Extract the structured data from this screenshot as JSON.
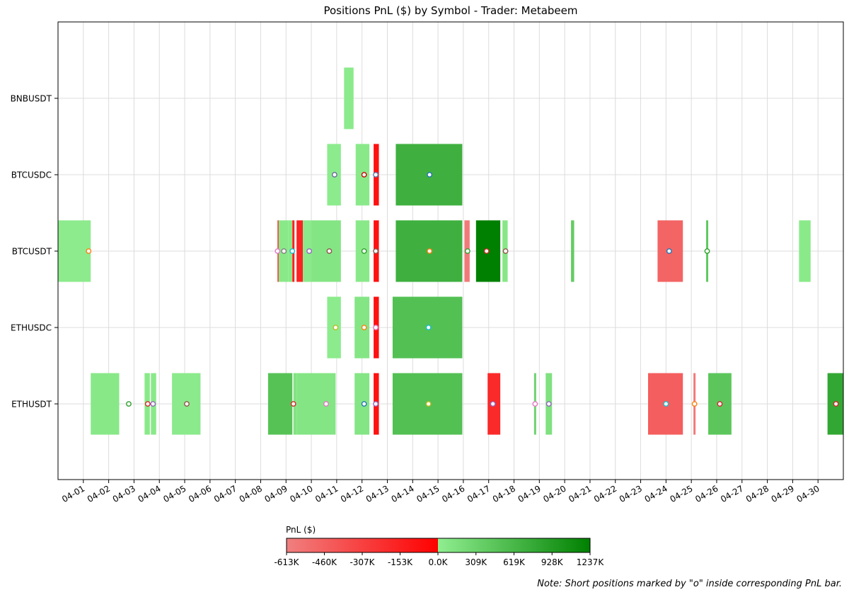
{
  "chart_data": {
    "type": "bar",
    "orientation": "horizontal-timeline",
    "title": "Positions PnL ($) by Symbol - Trader: Metabeem",
    "xlabel": "",
    "ylabel": "",
    "categories": [
      "BNBUSDT",
      "BTCUSDC",
      "BTCUSDT",
      "ETHUSDC",
      "ETHUSDT"
    ],
    "x_ticks": [
      "04-01",
      "04-02",
      "04-03",
      "04-04",
      "04-05",
      "04-06",
      "04-07",
      "04-08",
      "04-09",
      "04-10",
      "04-11",
      "04-12",
      "04-13",
      "04-14",
      "04-15",
      "04-16",
      "04-17",
      "04-18",
      "04-19",
      "04-20",
      "04-21",
      "04-22",
      "04-23",
      "04-24",
      "04-25",
      "04-26",
      "04-27",
      "04-28",
      "04-29",
      "04-30"
    ],
    "xlim": [
      "03-31 00:00",
      "05-01 00:00"
    ],
    "grid": true,
    "colorbar": {
      "label": "PnL ($)",
      "ticks": [
        "-613K",
        "-460K",
        "-307K",
        "-153K",
        "0.0K",
        "309K",
        "619K",
        "928K",
        "1237K"
      ],
      "range": [
        -613,
        1237
      ],
      "negative_colors": [
        "#f08080",
        "#ff0000"
      ],
      "positive_colors": [
        "#90ee90",
        "#008000"
      ]
    },
    "note": "Note: Short positions marked by \"o\" inside corresponding PnL bar.",
    "positions": [
      {
        "symbol": "BNBUSDT",
        "start": "04-11 07:00",
        "end": "04-11 16:00",
        "pnl": 40,
        "shorts": []
      },
      {
        "symbol": "BTCUSDC",
        "start": "04-10 15:00",
        "end": "04-11 04:00",
        "pnl": 35,
        "shorts": [
          {
            "t": "04-10 22:00",
            "c": "#6a6a9a"
          }
        ]
      },
      {
        "symbol": "BTCUSDC",
        "start": "04-11 18:00",
        "end": "04-12 07:00",
        "pnl": 60,
        "shorts": [
          {
            "t": "04-12 02:00",
            "c": "#cc0000"
          }
        ]
      },
      {
        "symbol": "BTCUSDC",
        "start": "04-12 11:00",
        "end": "04-12 16:00",
        "pnl": -80,
        "shorts": [
          {
            "t": "04-12 13:00",
            "c": "#5a7ab0"
          }
        ]
      },
      {
        "symbol": "BTCUSDC",
        "start": "04-13 08:00",
        "end": "04-15 23:00",
        "pnl": 700,
        "shorts": [
          {
            "t": "04-14 16:00",
            "c": "#1f77b4"
          }
        ]
      },
      {
        "symbol": "BTCUSDT",
        "start": "03-31 00:00",
        "end": "04-01 07:00",
        "pnl": 30,
        "shorts": [
          {
            "t": "04-01 05:00",
            "c": "#ff7f0e"
          }
        ]
      },
      {
        "symbol": "BTCUSDT",
        "start": "04-08 16:00",
        "end": "04-08 17:00",
        "pnl": -120,
        "shorts": [
          {
            "t": "04-08 16:00",
            "c": "#e377c2"
          }
        ]
      },
      {
        "symbol": "BTCUSDT",
        "start": "04-08 17:00",
        "end": "04-09 02:00",
        "pnl": 60,
        "shorts": [
          {
            "t": "04-08 22:00",
            "c": "#7f7f7f"
          }
        ]
      },
      {
        "symbol": "BTCUSDT",
        "start": "04-09 02:00",
        "end": "04-09 06:00",
        "pnl": 50,
        "shorts": [
          {
            "t": "04-09 06:00",
            "c": "#17becf"
          }
        ]
      },
      {
        "symbol": "BTCUSDT",
        "start": "04-09 06:00",
        "end": "04-09 08:00",
        "pnl": -150,
        "shorts": []
      },
      {
        "symbol": "BTCUSDT",
        "start": "04-09 10:00",
        "end": "04-09 16:00",
        "pnl": -170,
        "shorts": []
      },
      {
        "symbol": "BTCUSDT",
        "start": "04-09 16:00",
        "end": "04-10 00:00",
        "pnl": 40,
        "shorts": [
          {
            "t": "04-09 22:00",
            "c": "#9467bd"
          }
        ]
      },
      {
        "symbol": "BTCUSDT",
        "start": "04-10 00:00",
        "end": "04-11 04:00",
        "pnl": 100,
        "shorts": [
          {
            "t": "04-10 17:00",
            "c": "#8c564b"
          }
        ]
      },
      {
        "symbol": "BTCUSDT",
        "start": "04-11 18:00",
        "end": "04-12 07:00",
        "pnl": 60,
        "shorts": [
          {
            "t": "04-12 02:00",
            "c": "#2ca02c"
          }
        ]
      },
      {
        "symbol": "BTCUSDT",
        "start": "04-12 11:00",
        "end": "04-12 16:00",
        "pnl": -80,
        "shorts": [
          {
            "t": "04-12 13:00",
            "c": "#8c564b"
          }
        ]
      },
      {
        "symbol": "BTCUSDT",
        "start": "04-13 08:00",
        "end": "04-15 23:00",
        "pnl": 700,
        "shorts": [
          {
            "t": "04-14 16:00",
            "c": "#ff7f0e"
          }
        ]
      },
      {
        "symbol": "BTCUSDT",
        "start": "04-16 01:00",
        "end": "04-16 06:00",
        "pnl": -580,
        "shorts": [
          {
            "t": "04-16 04:00",
            "c": "#2ca02c"
          }
        ]
      },
      {
        "symbol": "BTCUSDT",
        "start": "04-16 12:00",
        "end": "04-17 11:00",
        "pnl": 1237,
        "shorts": [
          {
            "t": "04-16 22:00",
            "c": "#d62728"
          }
        ]
      },
      {
        "symbol": "BTCUSDT",
        "start": "04-17 13:00",
        "end": "04-17 18:00",
        "pnl": 80,
        "shorts": [
          {
            "t": "04-17 16:00",
            "c": "#8c564b"
          }
        ]
      },
      {
        "symbol": "BTCUSDT",
        "start": "04-20 06:00",
        "end": "04-20 09:00",
        "pnl": 380,
        "shorts": []
      },
      {
        "symbol": "BTCUSDT",
        "start": "04-23 16:00",
        "end": "04-24 16:00",
        "pnl": -480,
        "shorts": [
          {
            "t": "04-24 03:00",
            "c": "#1f77b4"
          }
        ]
      },
      {
        "symbol": "BTCUSDT",
        "start": "04-25 14:00",
        "end": "04-25 16:00",
        "pnl": 420,
        "shorts": [
          {
            "t": "04-25 15:00",
            "c": "#2ca02c"
          }
        ]
      },
      {
        "symbol": "BTCUSDT",
        "start": "04-29 06:00",
        "end": "04-29 17:00",
        "pnl": 50,
        "shorts": []
      },
      {
        "symbol": "ETHUSDC",
        "start": "04-10 15:00",
        "end": "04-11 04:00",
        "pnl": 35,
        "shorts": [
          {
            "t": "04-10 23:00",
            "c": "#bcbd22"
          }
        ]
      },
      {
        "symbol": "ETHUSDC",
        "start": "04-11 17:00",
        "end": "04-12 07:00",
        "pnl": 100,
        "shorts": [
          {
            "t": "04-12 02:00",
            "c": "#ff7f0e"
          }
        ]
      },
      {
        "symbol": "ETHUSDC",
        "start": "04-12 11:00",
        "end": "04-12 16:00",
        "pnl": -80,
        "shorts": [
          {
            "t": "04-12 13:00",
            "c": "#e377c2"
          }
        ]
      },
      {
        "symbol": "ETHUSDC",
        "start": "04-13 05:00",
        "end": "04-15 23:00",
        "pnl": 520,
        "shorts": [
          {
            "t": "04-14 15:00",
            "c": "#17becf"
          }
        ]
      },
      {
        "symbol": "ETHUSDT",
        "start": "04-01 07:00",
        "end": "04-02 10:00",
        "pnl": 70,
        "shorts": [
          {
            "t": "04-02 19:00",
            "c": "#2ca02c"
          }
        ]
      },
      {
        "symbol": "ETHUSDT",
        "start": "04-03 10:00",
        "end": "04-03 15:00",
        "pnl": 60,
        "shorts": [
          {
            "t": "04-03 13:00",
            "c": "#d62728"
          }
        ]
      },
      {
        "symbol": "ETHUSDT",
        "start": "04-03 16:00",
        "end": "04-03 21:00",
        "pnl": 60,
        "shorts": [
          {
            "t": "04-03 18:00",
            "c": "#9467bd"
          }
        ]
      },
      {
        "symbol": "ETHUSDT",
        "start": "04-04 12:00",
        "end": "04-05 15:00",
        "pnl": 40,
        "shorts": [
          {
            "t": "04-05 02:00",
            "c": "#8c564b"
          }
        ]
      },
      {
        "symbol": "ETHUSDT",
        "start": "04-08 07:00",
        "end": "04-09 06:00",
        "pnl": 500,
        "shorts": [
          {
            "t": "04-09 07:00",
            "c": "#d62728"
          }
        ]
      },
      {
        "symbol": "ETHUSDT",
        "start": "04-09 07:00",
        "end": "04-09 10:00",
        "pnl": 120,
        "shorts": []
      },
      {
        "symbol": "ETHUSDT",
        "start": "04-09 10:00",
        "end": "04-10 23:00",
        "pnl": 100,
        "shorts": [
          {
            "t": "04-10 14:00",
            "c": "#e377c2"
          }
        ]
      },
      {
        "symbol": "ETHUSDT",
        "start": "04-11 17:00",
        "end": "04-12 07:00",
        "pnl": 100,
        "shorts": [
          {
            "t": "04-12 02:00",
            "c": "#1f77b4"
          }
        ]
      },
      {
        "symbol": "ETHUSDT",
        "start": "04-12 11:00",
        "end": "04-12 16:00",
        "pnl": -80,
        "shorts": [
          {
            "t": "04-12 13:00",
            "c": "#9467bd"
          }
        ]
      },
      {
        "symbol": "ETHUSDT",
        "start": "04-13 05:00",
        "end": "04-15 23:00",
        "pnl": 520,
        "shorts": [
          {
            "t": "04-14 15:00",
            "c": "#bcbd22"
          }
        ]
      },
      {
        "symbol": "ETHUSDT",
        "start": "04-16 23:00",
        "end": "04-17 11:00",
        "pnl": -200,
        "shorts": [
          {
            "t": "04-17 04:00",
            "c": "#9467bd"
          }
        ]
      },
      {
        "symbol": "ETHUSDT",
        "start": "04-18 19:00",
        "end": "04-18 21:00",
        "pnl": 300,
        "shorts": [
          {
            "t": "04-18 20:00",
            "c": "#e377c2"
          }
        ]
      },
      {
        "symbol": "ETHUSDT",
        "start": "04-19 06:00",
        "end": "04-19 12:00",
        "pnl": 150,
        "shorts": [
          {
            "t": "04-19 09:00",
            "c": "#9467bd"
          }
        ]
      },
      {
        "symbol": "ETHUSDT",
        "start": "04-23 07:00",
        "end": "04-24 16:00",
        "pnl": -450,
        "shorts": [
          {
            "t": "04-24 00:00",
            "c": "#17becf"
          }
        ]
      },
      {
        "symbol": "ETHUSDT",
        "start": "04-25 02:00",
        "end": "04-25 04:00",
        "pnl": -580,
        "shorts": [
          {
            "t": "04-25 03:00",
            "c": "#ff7f0e"
          }
        ]
      },
      {
        "symbol": "ETHUSDT",
        "start": "04-25 16:00",
        "end": "04-26 14:00",
        "pnl": 450,
        "shorts": [
          {
            "t": "04-26 03:00",
            "c": "#d62728"
          }
        ]
      },
      {
        "symbol": "ETHUSDT",
        "start": "04-30 09:00",
        "end": "05-01 00:00",
        "pnl": 800,
        "shorts": [
          {
            "t": "04-30 17:00",
            "c": "#d62728"
          }
        ]
      }
    ]
  }
}
